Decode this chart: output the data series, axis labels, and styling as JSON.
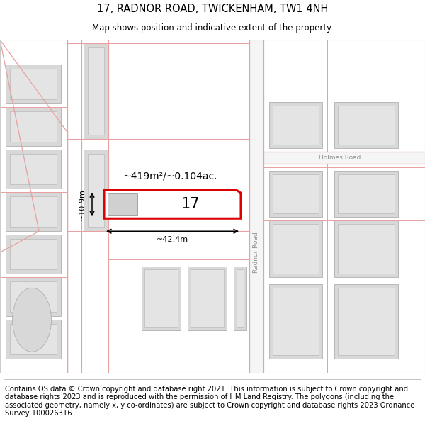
{
  "title": "17, RADNOR ROAD, TWICKENHAM, TW1 4NH",
  "subtitle": "Map shows position and indicative extent of the property.",
  "footer": "Contains OS data © Crown copyright and database right 2021. This information is subject to Crown copyright and database rights 2023 and is reproduced with the permission of HM Land Registry. The polygons (including the associated geometry, namely x, y co-ordinates) are subject to Crown copyright and database rights 2023 Ordnance Survey 100026316.",
  "background_color": "#ffffff",
  "map_background": "#ffffff",
  "road_color": "#e8a0a0",
  "building_fill": "#d8d8d8",
  "building_edge": "#b0b0b0",
  "highlight_fill": "#ffffff",
  "highlight_edge": "#dd0000",
  "highlight_lw": 2.2,
  "road_label_color": "#909090",
  "area_text": "~419m²/~0.104ac.",
  "dim_width": "~42.4m",
  "dim_height": "~10.9m",
  "plot_number": "17",
  "title_fontsize": 10.5,
  "subtitle_fontsize": 8.5,
  "footer_fontsize": 7.2,
  "map_border_color": "#cccccc"
}
